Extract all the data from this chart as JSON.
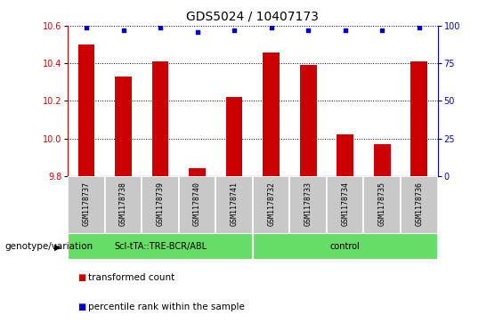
{
  "title": "GDS5024 / 10407173",
  "samples": [
    "GSM1178737",
    "GSM1178738",
    "GSM1178739",
    "GSM1178740",
    "GSM1178741",
    "GSM1178732",
    "GSM1178733",
    "GSM1178734",
    "GSM1178735",
    "GSM1178736"
  ],
  "transformed_counts": [
    10.5,
    10.33,
    10.41,
    9.84,
    10.22,
    10.46,
    10.39,
    10.02,
    9.97,
    10.41
  ],
  "percentile_ranks": [
    99,
    97,
    99,
    96,
    97,
    99,
    97,
    97,
    97,
    99
  ],
  "group1_label": "Scl-tTA::TRE-BCR/ABL",
  "group2_label": "control",
  "group1_samples": 5,
  "group2_samples": 5,
  "ylim_left": [
    9.8,
    10.6
  ],
  "ylim_right": [
    0,
    100
  ],
  "yticks_left": [
    9.8,
    10.0,
    10.2,
    10.4,
    10.6
  ],
  "yticks_right": [
    0,
    25,
    50,
    75,
    100
  ],
  "bar_color": "#cc0000",
  "dot_color": "#0000cc",
  "group_bg_color": "#66dd66",
  "sample_bg_color": "#c8c8c8",
  "legend_label_bar": "transformed count",
  "legend_label_dot": "percentile rank within the sample",
  "genotype_label": "genotype/variation",
  "title_fontsize": 10,
  "tick_fontsize": 7,
  "label_fontsize": 7.5,
  "legend_fontsize": 7.5,
  "sample_fontsize": 6,
  "group_fontsize": 7
}
